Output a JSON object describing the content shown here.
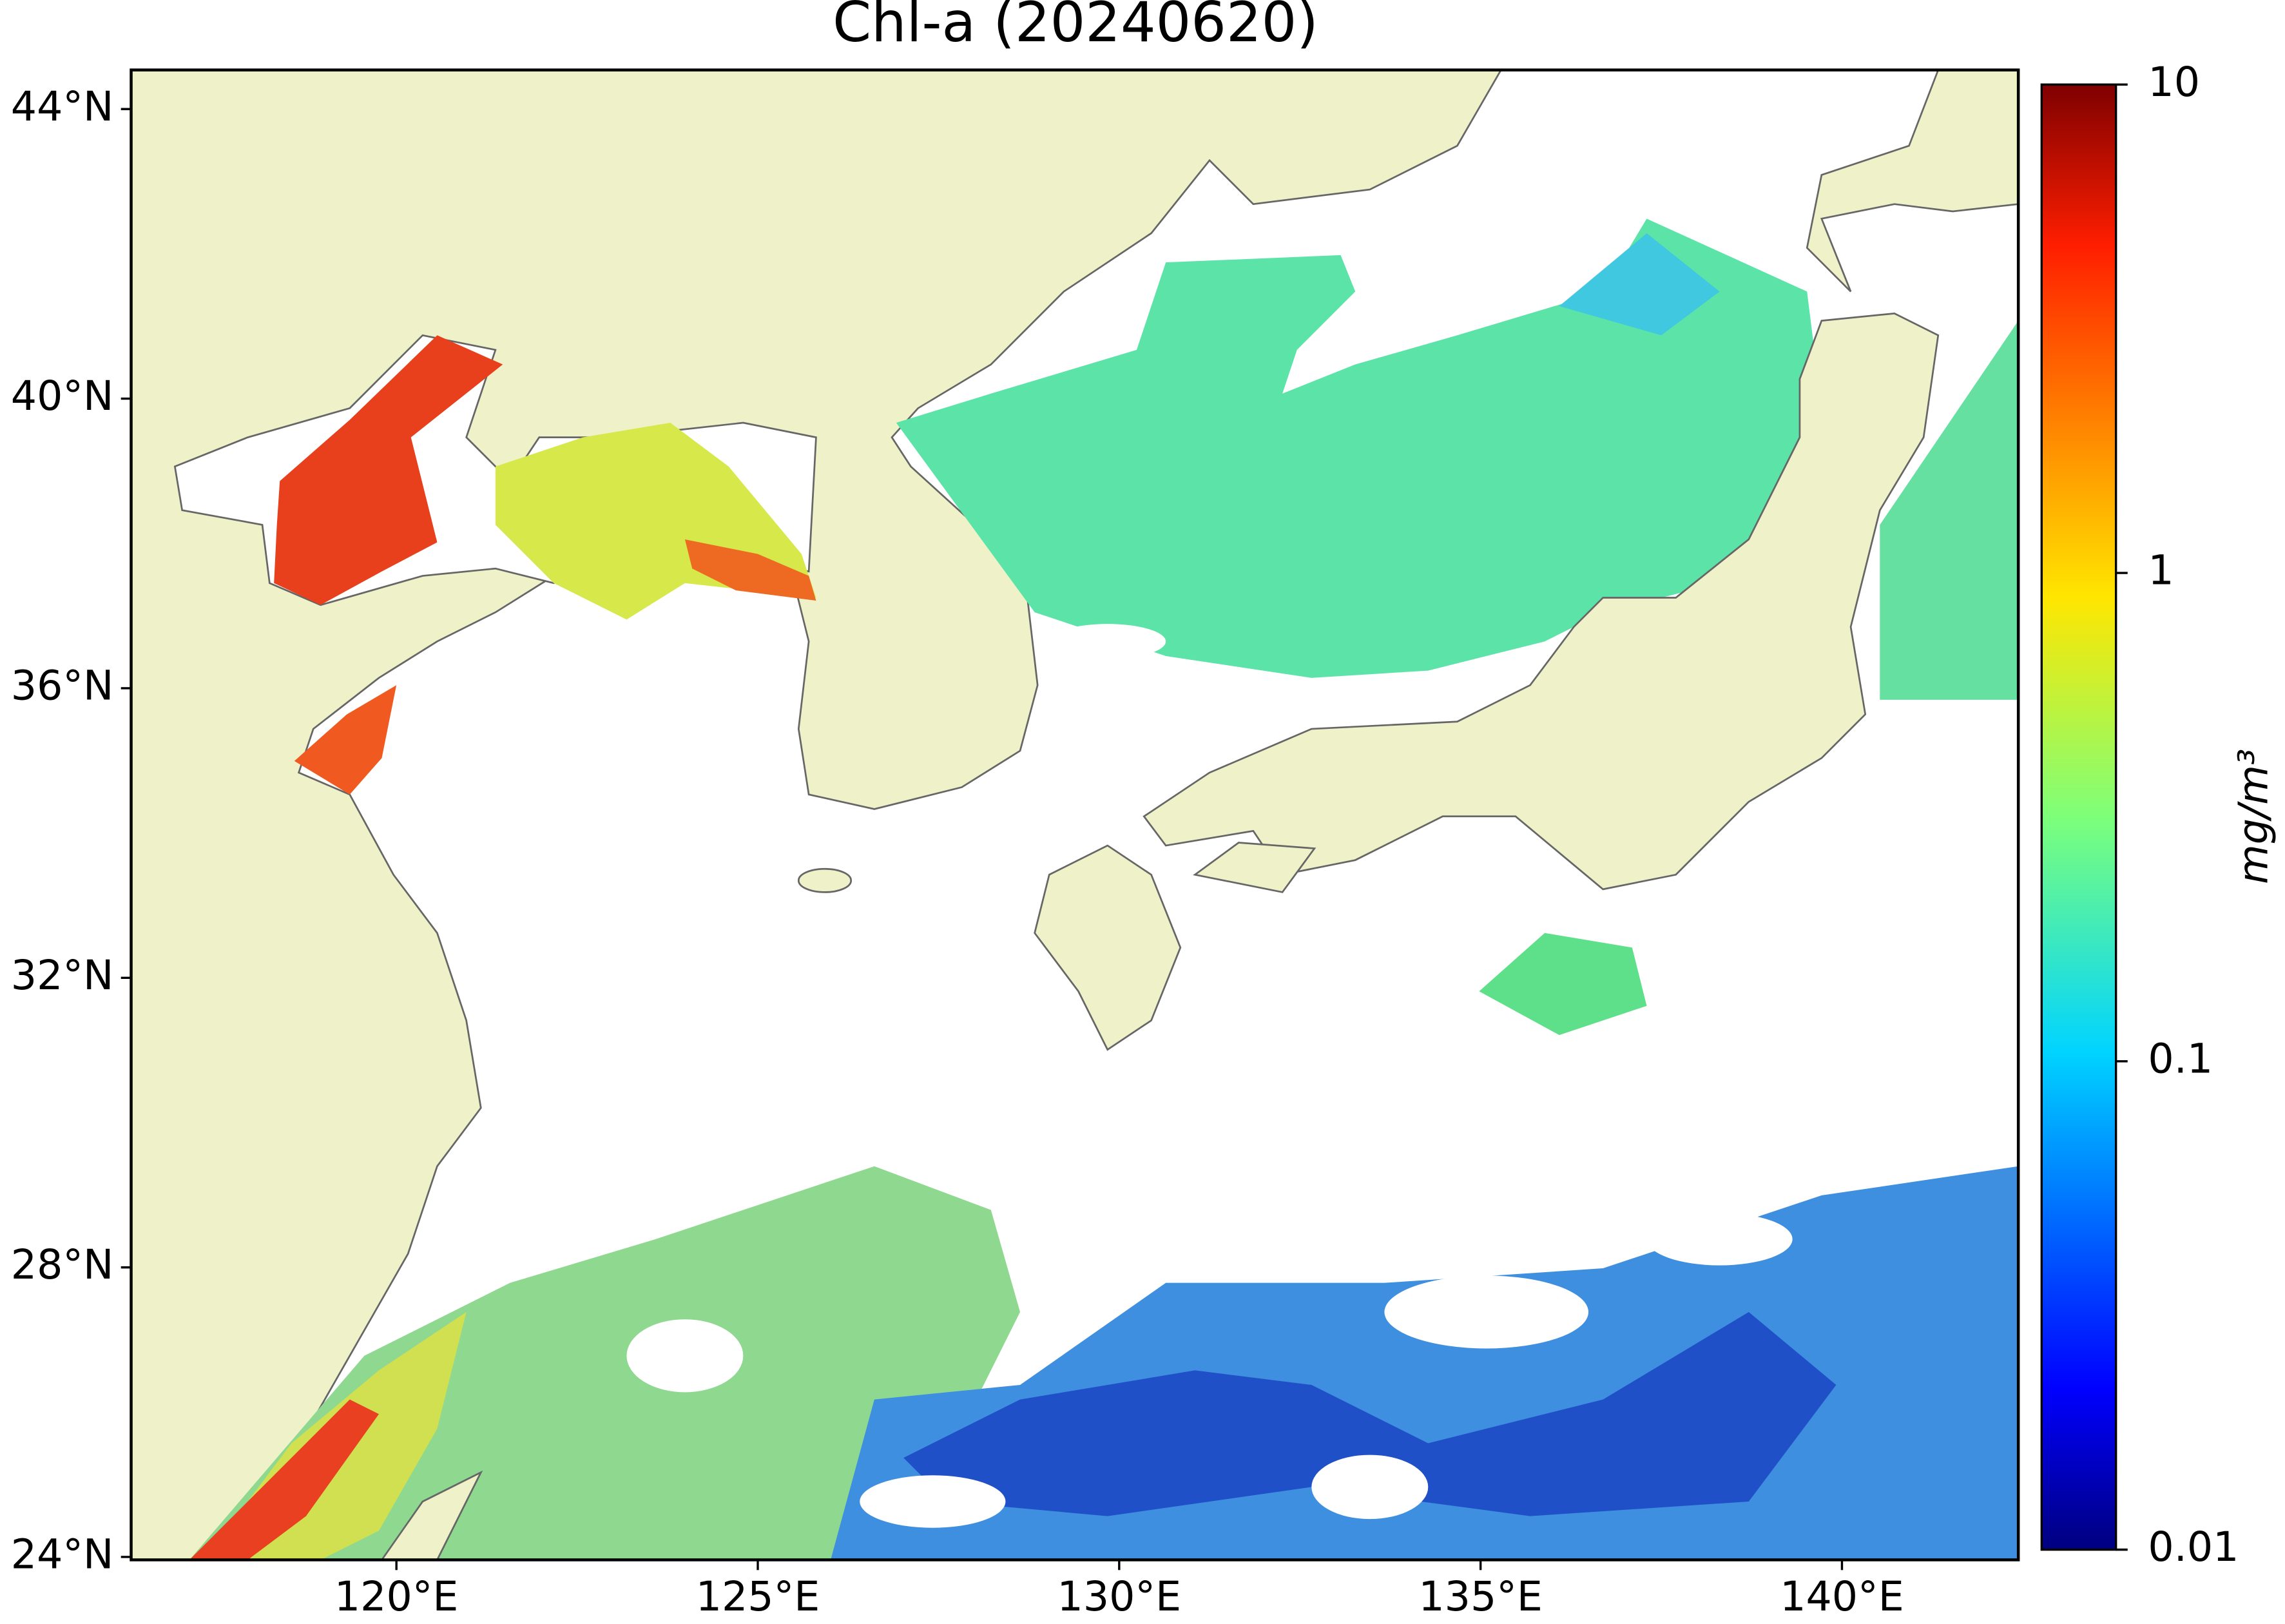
{
  "title": "Chl-a (20240620)",
  "map": {
    "lonlim": [
      116.33,
      142.44
    ],
    "latlim": [
      23.96,
      44.54
    ],
    "lon_ticks": [
      {
        "value": 120,
        "label": "120°E"
      },
      {
        "value": 125,
        "label": "125°E"
      },
      {
        "value": 130,
        "label": "130°E"
      },
      {
        "value": 135,
        "label": "135°E"
      },
      {
        "value": 140,
        "label": "140°E"
      }
    ],
    "lat_ticks": [
      {
        "value": 44,
        "label": "44°N"
      },
      {
        "value": 40,
        "label": "40°N"
      },
      {
        "value": 36,
        "label": "36°N"
      },
      {
        "value": 32,
        "label": "32°N"
      },
      {
        "value": 28,
        "label": "28°N"
      },
      {
        "value": 24,
        "label": "24°N"
      }
    ]
  },
  "colorbar": {
    "label": "mg/m³",
    "scale": "log",
    "lim": [
      0.01,
      10
    ],
    "ticks": [
      0.01,
      0.1,
      1,
      10
    ]
  }
}
